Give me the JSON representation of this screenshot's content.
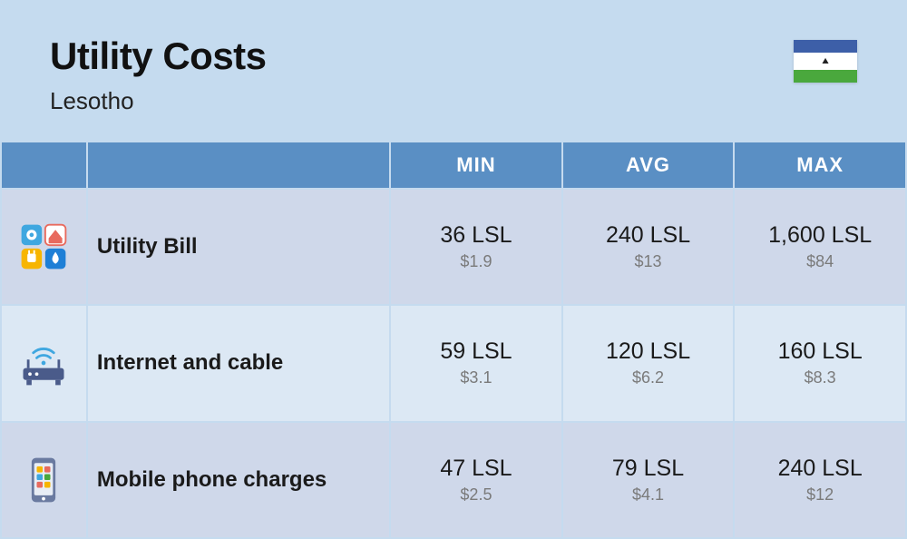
{
  "header": {
    "title": "Utility Costs",
    "subtitle": "Lesotho"
  },
  "flag": {
    "top_color": "#3d5fa8",
    "mid_color": "#ffffff",
    "bot_color": "#4aa83d",
    "emblem": "⛰"
  },
  "colors": {
    "page_bg": "#c5dbef",
    "header_row_bg": "#5a8fc4",
    "header_row_text": "#ffffff",
    "row_odd_bg": "#cfd8ea",
    "row_even_bg": "#dce8f4",
    "border": "#c5dbef",
    "text_primary": "#1a1a1a",
    "text_secondary": "#7a7a7a",
    "title_color": "#111111",
    "subtitle_color": "#222222"
  },
  "columns": [
    "",
    "",
    "MIN",
    "AVG",
    "MAX"
  ],
  "rows": [
    {
      "icon": "utilities",
      "label": "Utility Bill",
      "min": {
        "primary": "36 LSL",
        "secondary": "$1.9"
      },
      "avg": {
        "primary": "240 LSL",
        "secondary": "$13"
      },
      "max": {
        "primary": "1,600 LSL",
        "secondary": "$84"
      }
    },
    {
      "icon": "router",
      "label": "Internet and cable",
      "min": {
        "primary": "59 LSL",
        "secondary": "$3.1"
      },
      "avg": {
        "primary": "120 LSL",
        "secondary": "$6.2"
      },
      "max": {
        "primary": "160 LSL",
        "secondary": "$8.3"
      }
    },
    {
      "icon": "phone",
      "label": "Mobile phone charges",
      "min": {
        "primary": "47 LSL",
        "secondary": "$2.5"
      },
      "avg": {
        "primary": "79 LSL",
        "secondary": "$4.1"
      },
      "max": {
        "primary": "240 LSL",
        "secondary": "$12"
      }
    }
  ],
  "icon_palette": {
    "utilities_gear": "#3fa7e0",
    "utilities_plug": "#f7b500",
    "utilities_water": "#1e7fd6",
    "utilities_house": "#e86a5e",
    "router_body": "#4a5b8a",
    "router_wave": "#3fa7e0",
    "phone_body": "#6a7aa0",
    "phone_screen": "#e8edf5",
    "phone_app1": "#f7b500",
    "phone_app2": "#e86a5e",
    "phone_app3": "#3fa7e0",
    "phone_app4": "#4aa83d"
  }
}
